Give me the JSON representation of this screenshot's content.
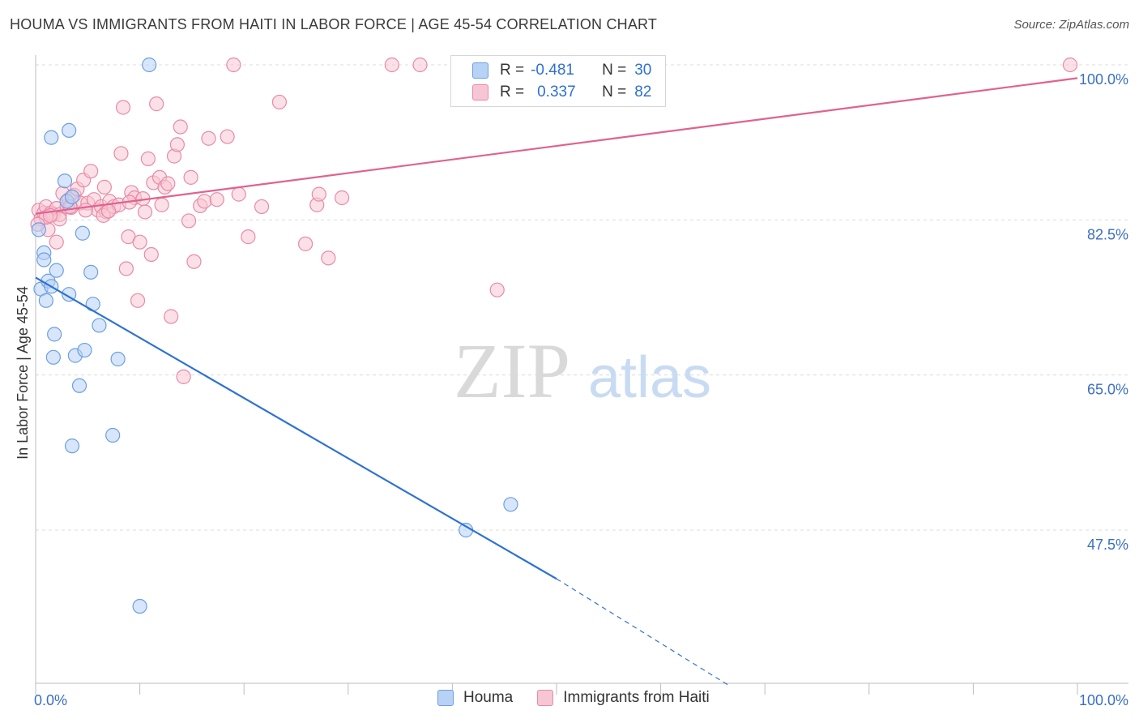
{
  "title": "HOUMA VS IMMIGRANTS FROM HAITI IN LABOR FORCE | AGE 45-54 CORRELATION CHART",
  "source": "Source: ZipAtlas.com",
  "watermark": {
    "zip": "ZIP",
    "atlas": "atlas"
  },
  "legend": {
    "r_label": "R =",
    "n_label": "N =",
    "series": [
      {
        "name": "Houma",
        "r": "-0.481",
        "n": "30",
        "fill": "#b7d2f5",
        "stroke": "#6d9fe0"
      },
      {
        "name": "Immigrants from Haiti",
        "r": "0.337",
        "n": "82",
        "fill": "#f7c6d4",
        "stroke": "#e88aa8"
      }
    ]
  },
  "colors": {
    "blue_line": "#2e72d2",
    "pink_line": "#e0628e",
    "axis_text": "#3a6fc4",
    "grid": "#dcdcdc"
  },
  "chart_data": {
    "type": "scatter",
    "xlabel": "",
    "ylabel": "In Labor Force | Age 45-54",
    "xlim": [
      0,
      100
    ],
    "ylim": [
      30,
      102
    ],
    "x_tick_labels": [
      {
        "v": 0,
        "label": "0.0%"
      },
      {
        "v": 100,
        "label": "100.0%"
      }
    ],
    "y_tick_labels": [
      {
        "v": 100,
        "label": "100.0%"
      },
      {
        "v": 82.5,
        "label": "82.5%"
      },
      {
        "v": 65,
        "label": "65.0%"
      },
      {
        "v": 47.5,
        "label": "47.5%"
      }
    ],
    "series": [
      {
        "name": "Houma",
        "color": "#6d9fe0",
        "points": [
          [
            0.3,
            81.4
          ],
          [
            0.5,
            74.7
          ],
          [
            0.8,
            78.8
          ],
          [
            0.8,
            78.0
          ],
          [
            1.0,
            73.4
          ],
          [
            1.2,
            75.6
          ],
          [
            1.5,
            75.0
          ],
          [
            1.5,
            91.8
          ],
          [
            1.7,
            67.0
          ],
          [
            1.8,
            69.6
          ],
          [
            2.0,
            76.8
          ],
          [
            2.8,
            86.9
          ],
          [
            3.0,
            84.6
          ],
          [
            3.2,
            92.6
          ],
          [
            3.2,
            74.1
          ],
          [
            3.5,
            85.1
          ],
          [
            3.8,
            67.2
          ],
          [
            4.2,
            63.8
          ],
          [
            4.5,
            81.0
          ],
          [
            4.7,
            67.8
          ],
          [
            5.3,
            76.6
          ],
          [
            5.5,
            73.0
          ],
          [
            6.1,
            70.6
          ],
          [
            7.4,
            58.2
          ],
          [
            7.9,
            66.8
          ],
          [
            10.0,
            38.9
          ],
          [
            10.9,
            100.0
          ],
          [
            3.5,
            57.0
          ],
          [
            41.3,
            47.5
          ],
          [
            45.6,
            50.4
          ]
        ]
      },
      {
        "name": "Immigrants from Haiti",
        "color": "#e88aa8",
        "points": [
          [
            0.3,
            83.6
          ],
          [
            0.5,
            82.6
          ],
          [
            0.8,
            83.3
          ],
          [
            1.0,
            84.0
          ],
          [
            1.2,
            81.4
          ],
          [
            1.5,
            83.3
          ],
          [
            1.7,
            83.1
          ],
          [
            2.0,
            83.8
          ],
          [
            2.3,
            83.1
          ],
          [
            2.6,
            85.5
          ],
          [
            3.0,
            84.0
          ],
          [
            3.2,
            84.8
          ],
          [
            3.4,
            83.9
          ],
          [
            3.7,
            85.3
          ],
          [
            4.0,
            86.0
          ],
          [
            4.3,
            84.4
          ],
          [
            4.6,
            87.0
          ],
          [
            5.0,
            84.4
          ],
          [
            5.3,
            88.0
          ],
          [
            5.6,
            84.8
          ],
          [
            6.0,
            83.6
          ],
          [
            6.3,
            84.0
          ],
          [
            6.6,
            86.2
          ],
          [
            6.8,
            83.4
          ],
          [
            7.1,
            84.6
          ],
          [
            7.5,
            84.0
          ],
          [
            8.0,
            84.2
          ],
          [
            8.2,
            90.0
          ],
          [
            8.4,
            95.2
          ],
          [
            8.7,
            77.0
          ],
          [
            8.9,
            80.6
          ],
          [
            9.2,
            85.6
          ],
          [
            9.5,
            85.0
          ],
          [
            9.8,
            73.4
          ],
          [
            10.0,
            80.0
          ],
          [
            10.3,
            84.9
          ],
          [
            10.5,
            83.4
          ],
          [
            10.8,
            89.4
          ],
          [
            11.1,
            78.6
          ],
          [
            11.3,
            86.7
          ],
          [
            11.6,
            95.6
          ],
          [
            11.9,
            87.3
          ],
          [
            12.1,
            84.2
          ],
          [
            12.4,
            86.2
          ],
          [
            12.7,
            86.6
          ],
          [
            13.0,
            71.6
          ],
          [
            13.3,
            89.7
          ],
          [
            13.6,
            91.0
          ],
          [
            13.9,
            93.0
          ],
          [
            14.2,
            64.8
          ],
          [
            14.7,
            82.4
          ],
          [
            14.9,
            87.3
          ],
          [
            15.2,
            77.8
          ],
          [
            15.8,
            84.1
          ],
          [
            16.2,
            84.6
          ],
          [
            16.6,
            91.7
          ],
          [
            17.4,
            84.8
          ],
          [
            18.4,
            91.9
          ],
          [
            19.5,
            85.4
          ],
          [
            20.4,
            80.6
          ],
          [
            21.7,
            84.0
          ],
          [
            23.4,
            95.8
          ],
          [
            25.9,
            79.8
          ],
          [
            27.0,
            84.2
          ],
          [
            27.2,
            85.4
          ],
          [
            28.1,
            78.2
          ],
          [
            29.4,
            85.0
          ],
          [
            34.2,
            100.0
          ],
          [
            36.9,
            100.0
          ],
          [
            44.3,
            74.6
          ],
          [
            19.0,
            100.0
          ],
          [
            99.3,
            100.0
          ],
          [
            2.0,
            80.0
          ],
          [
            1.0,
            82.8
          ],
          [
            0.2,
            82.0
          ],
          [
            4.8,
            83.6
          ],
          [
            6.5,
            83.0
          ],
          [
            7.0,
            83.5
          ],
          [
            3.3,
            84.0
          ],
          [
            2.3,
            82.6
          ],
          [
            1.4,
            83.0
          ],
          [
            9.0,
            84.5
          ]
        ]
      }
    ],
    "trendlines": [
      {
        "series": "Houma",
        "x0": 0,
        "y0": 76.0,
        "x1": 50,
        "y1": 42.0,
        "dash_from": 50,
        "dash_to": 66.5,
        "dash_end_y": 30.0
      },
      {
        "series": "Immigrants from Haiti",
        "x0": 0,
        "y0": 83.2,
        "x1": 100,
        "y1": 98.5
      }
    ],
    "grid": true,
    "legend_position": "top-center"
  }
}
